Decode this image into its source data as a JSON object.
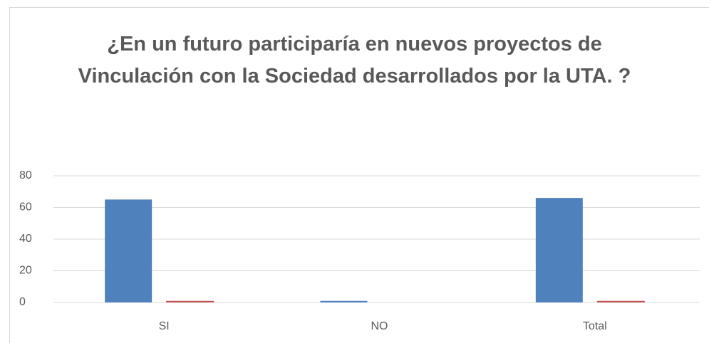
{
  "chart_data": {
    "type": "bar",
    "title": "¿En un futuro participaría en nuevos proyectos de Vinculación con la Sociedad desarrollados por la UTA. ?",
    "categories": [
      "SI",
      "NO",
      "Total"
    ],
    "series": [
      {
        "color": "#4f81bd",
        "values": [
          65,
          1,
          66
        ]
      },
      {
        "color": "#c0504d",
        "values": [
          1,
          0,
          1
        ]
      }
    ],
    "ylim": [
      0,
      80
    ],
    "yticks": [
      0,
      20,
      40,
      60,
      80
    ],
    "grid": true
  }
}
